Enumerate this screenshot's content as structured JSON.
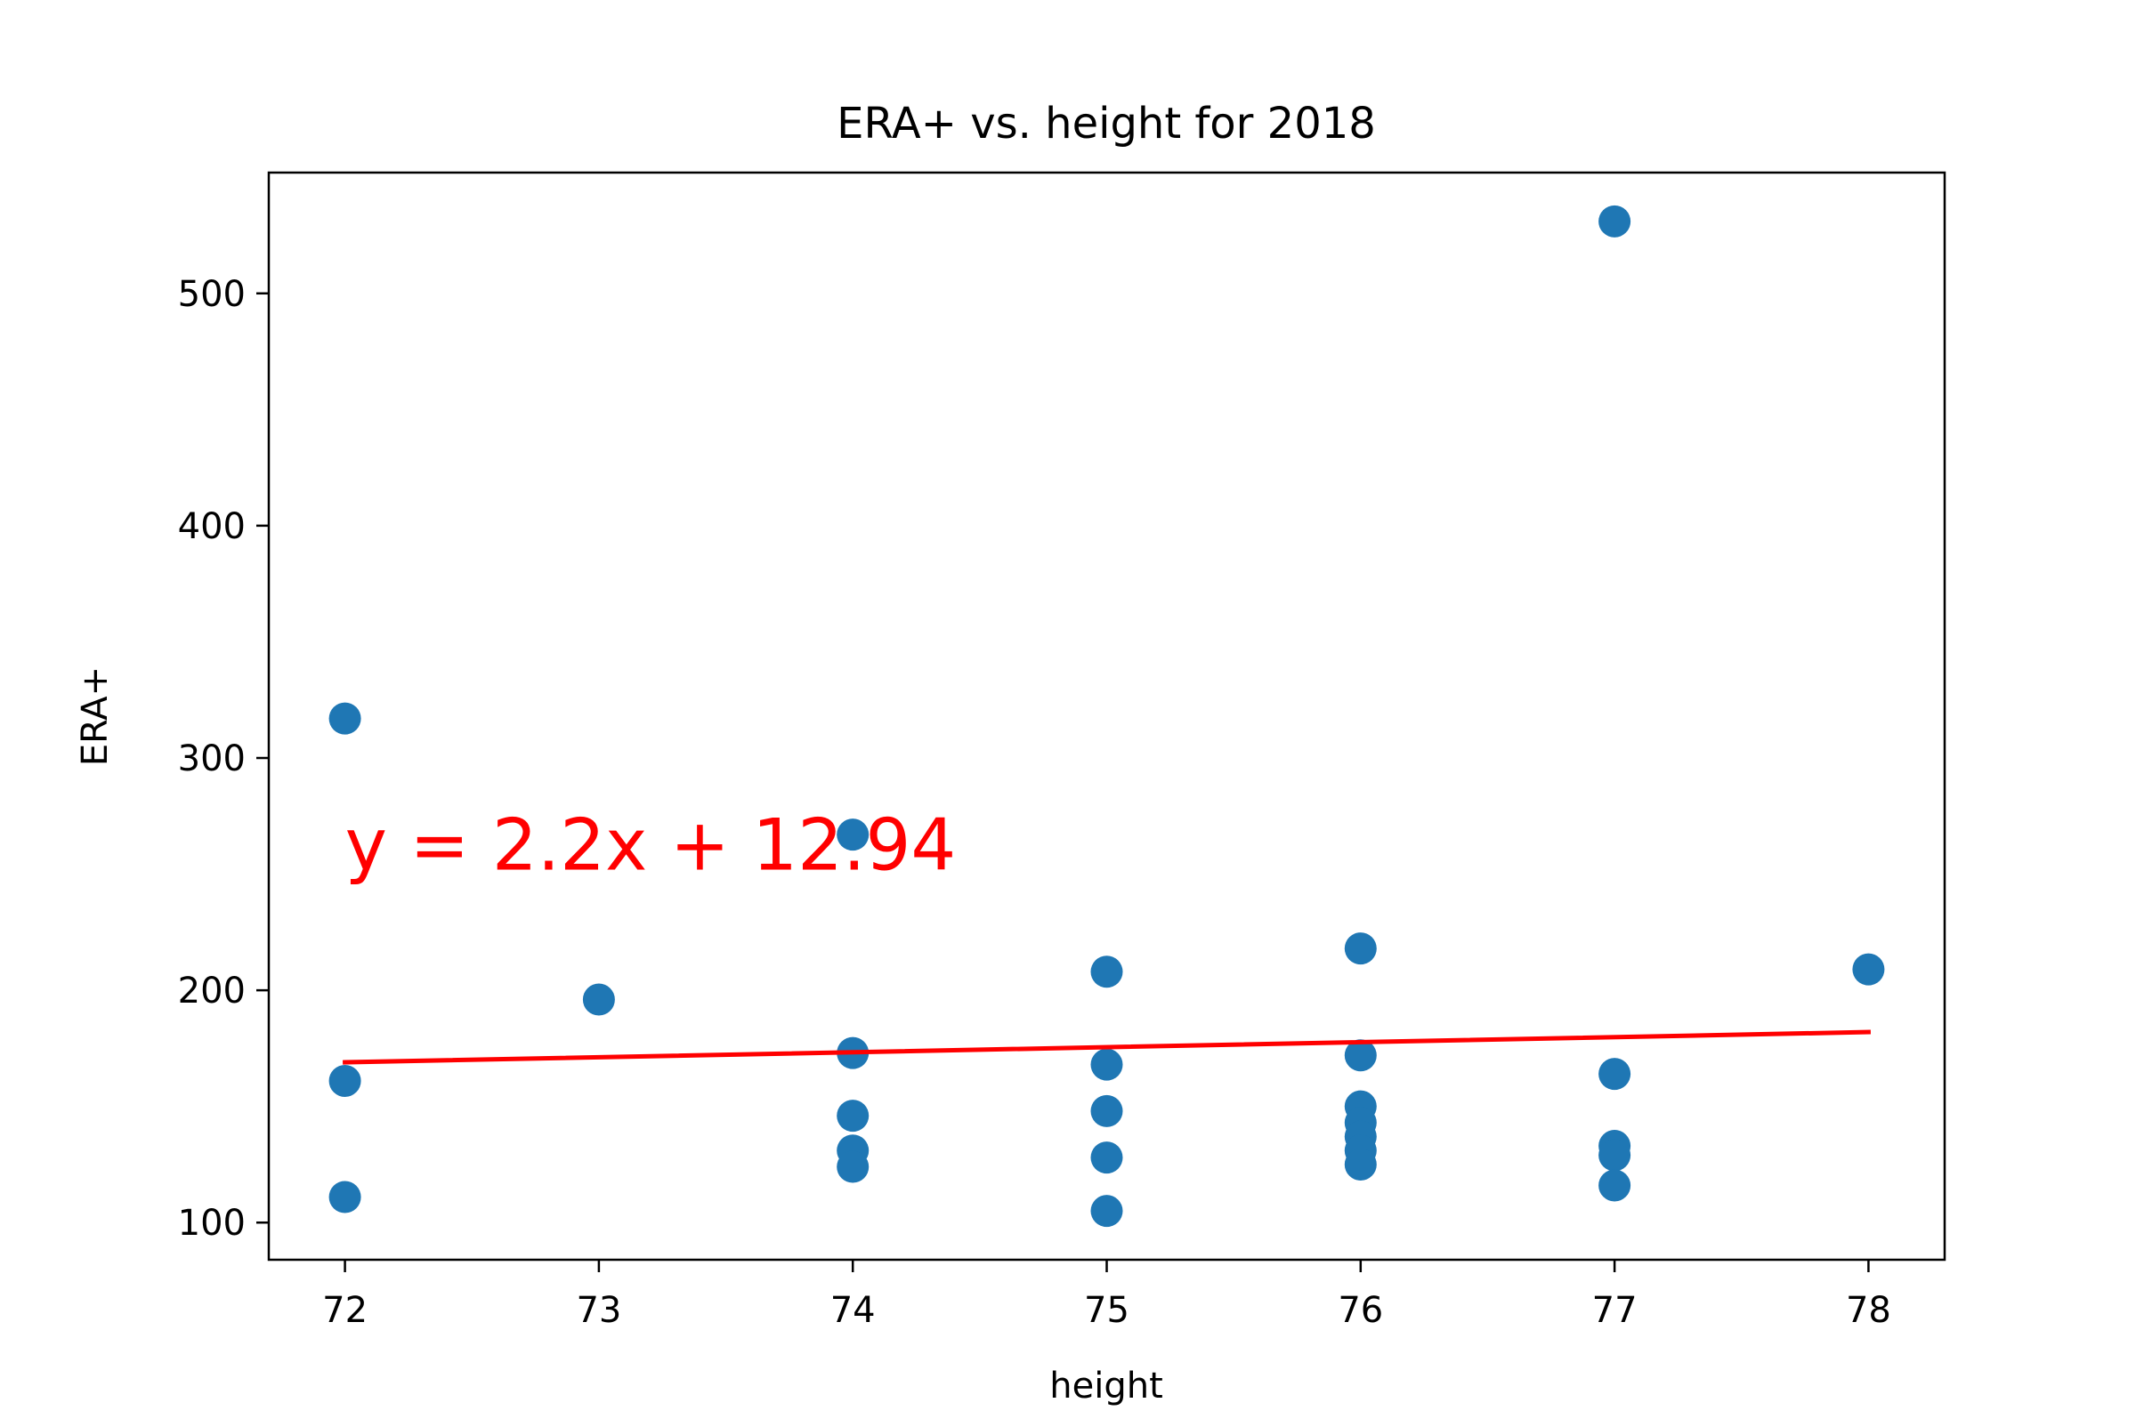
{
  "chart_data": {
    "type": "scatter",
    "title": "ERA+ vs. height for 2018",
    "xlabel": "height",
    "ylabel": "ERA+",
    "xlim": [
      71.7,
      78.3
    ],
    "ylim": [
      84,
      552
    ],
    "xticks": [
      72,
      73,
      74,
      75,
      76,
      77,
      78
    ],
    "yticks": [
      100,
      200,
      300,
      400,
      500
    ],
    "grid": false,
    "series": [
      {
        "marker_color": "#1f77b4",
        "points": [
          {
            "x": 72,
            "y": 317
          },
          {
            "x": 72,
            "y": 161
          },
          {
            "x": 72,
            "y": 111
          },
          {
            "x": 73,
            "y": 196
          },
          {
            "x": 74,
            "y": 267
          },
          {
            "x": 74,
            "y": 173
          },
          {
            "x": 74,
            "y": 146
          },
          {
            "x": 74,
            "y": 131
          },
          {
            "x": 74,
            "y": 124
          },
          {
            "x": 75,
            "y": 208
          },
          {
            "x": 75,
            "y": 168
          },
          {
            "x": 75,
            "y": 148
          },
          {
            "x": 75,
            "y": 128
          },
          {
            "x": 75,
            "y": 105
          },
          {
            "x": 76,
            "y": 218
          },
          {
            "x": 76,
            "y": 172
          },
          {
            "x": 76,
            "y": 150
          },
          {
            "x": 76,
            "y": 143
          },
          {
            "x": 76,
            "y": 137
          },
          {
            "x": 76,
            "y": 131
          },
          {
            "x": 76,
            "y": 125
          },
          {
            "x": 77,
            "y": 531
          },
          {
            "x": 77,
            "y": 164
          },
          {
            "x": 77,
            "y": 133
          },
          {
            "x": 77,
            "y": 129
          },
          {
            "x": 77,
            "y": 116
          },
          {
            "x": 78,
            "y": 209
          }
        ]
      }
    ],
    "fit_line": {
      "color": "#ff0000",
      "x": [
        72,
        78
      ],
      "y": [
        169,
        182
      ]
    },
    "annotation": {
      "text": "y = 2.2x + 12.94",
      "x": 72,
      "y": 252,
      "color": "#ff0000"
    }
  }
}
